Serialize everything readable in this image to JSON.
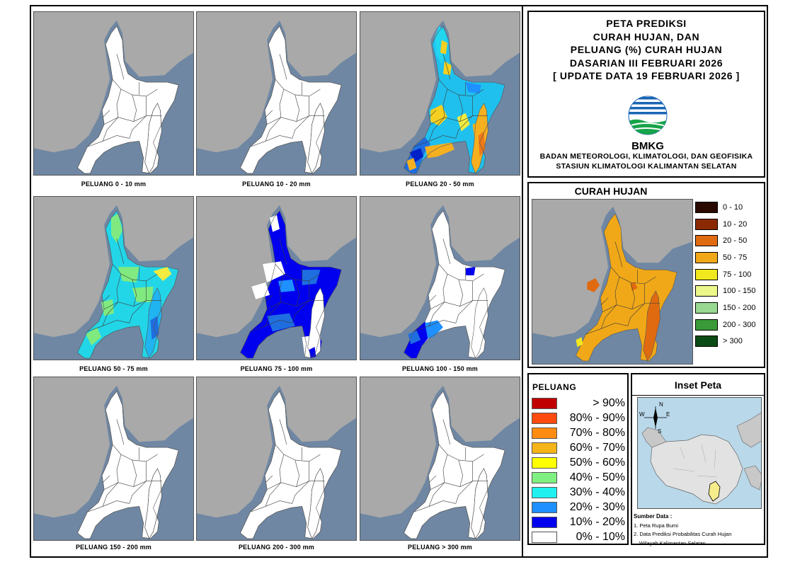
{
  "panels": [
    {
      "caption": "PELUANG 0 - 10 mm",
      "fill": "none"
    },
    {
      "caption": "PELUANG 10 - 20 mm",
      "fill": "none"
    },
    {
      "caption": "PELUANG 20 - 50 mm",
      "fill": "p2050"
    },
    {
      "caption": "PELUANG 50 - 75 mm",
      "fill": "p5075"
    },
    {
      "caption": "PELUANG 75 - 100 mm",
      "fill": "p75100"
    },
    {
      "caption": "PELUANG 100 - 150 mm",
      "fill": "p100150"
    },
    {
      "caption": "PELUANG 150 - 200 mm",
      "fill": "none"
    },
    {
      "caption": "PELUANG 200 - 300 mm",
      "fill": "none"
    },
    {
      "caption": "PELUANG > 300 mm",
      "fill": "none"
    }
  ],
  "title": {
    "lines": [
      "PETA PREDIKSI",
      "CURAH HUJAN, DAN",
      "PELUANG (%) CURAH HUJAN",
      "DASARIAN III FEBRUARI 2026",
      "[ UPDATE DATA 19 FEBRUARI 2026 ]"
    ],
    "logo_text": "BMKG",
    "org_lines": [
      "BADAN METEOROLOGI, KLIMATOLOGI, DAN GEOFISIKA",
      "STASIUN KLIMATOLOGI KALIMANTAN SELATAN"
    ]
  },
  "rainfall": {
    "title": "CURAH HUJAN",
    "legend": [
      {
        "label": "0 - 10",
        "color": "#2a0a00"
      },
      {
        "label": "10 - 20",
        "color": "#8b2a00"
      },
      {
        "label": "20 - 50",
        "color": "#e06a10"
      },
      {
        "label": "50 - 75",
        "color": "#f0a818"
      },
      {
        "label": "75 - 100",
        "color": "#f2e81e"
      },
      {
        "label": "100 - 150",
        "color": "#ecf78a"
      },
      {
        "label": "150 - 200",
        "color": "#98d890"
      },
      {
        "label": "200 - 300",
        "color": "#3a9a3a"
      },
      {
        "label": "> 300",
        "color": "#0a4a14"
      }
    ]
  },
  "probability": {
    "title": "PELUANG",
    "legend": [
      {
        "label": "> 90%",
        "color": "#c00000"
      },
      {
        "label": "80% - 90%",
        "color": "#ff4b10"
      },
      {
        "label": "70% - 80%",
        "color": "#ff8c10"
      },
      {
        "label": "60% - 70%",
        "color": "#f5b417"
      },
      {
        "label": "50% - 60%",
        "color": "#ffff00"
      },
      {
        "label": "40% - 50%",
        "color": "#80f080"
      },
      {
        "label": "30% - 40%",
        "color": "#20f0f0"
      },
      {
        "label": "20% - 30%",
        "color": "#1e90ff"
      },
      {
        "label": "10% - 20%",
        "color": "#0000ee"
      },
      {
        "label": "0% - 10%",
        "color": "#ffffff"
      }
    ]
  },
  "inset": {
    "title": "Inset Peta",
    "compass": {
      "n": "N",
      "s": "S",
      "e": "E",
      "w": "W"
    },
    "sources_title": "Sumber Data :",
    "sources": [
      "1. Peta Rupa Bumi",
      "2. Data Prediksi Probabilitas Curah Hujan",
      "Wilayah Kalimantan Selatan"
    ]
  },
  "colors": {
    "sea": "#6f87a3",
    "land_outside": "#a9a9a9",
    "province_base": "#ffffff"
  }
}
